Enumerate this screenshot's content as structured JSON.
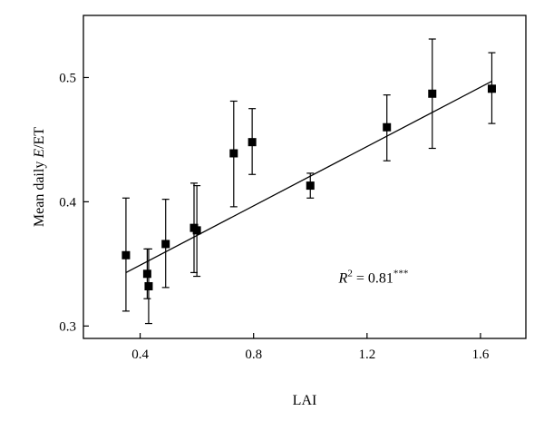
{
  "chart_data": {
    "type": "scatter",
    "xlabel": "LAI",
    "ylabel": {
      "prefix": "Mean daily ",
      "var": "E",
      "suffix": "/ET"
    },
    "xlim": [
      0.2,
      1.76
    ],
    "ylim": [
      0.29,
      0.55
    ],
    "xticks": [
      0.4,
      0.8,
      1.2,
      1.6
    ],
    "xtick_labels": [
      "0.4",
      "0.8",
      "1.2",
      "1.6"
    ],
    "yticks": [
      0.3,
      0.4,
      0.5
    ],
    "ytick_labels": [
      "0.3",
      "0.4",
      "0.5"
    ],
    "points": [
      {
        "x": 0.35,
        "y": 0.357,
        "err_low": 0.312,
        "err_high": 0.403
      },
      {
        "x": 0.425,
        "y": 0.342,
        "err_low": 0.322,
        "err_high": 0.362
      },
      {
        "x": 0.43,
        "y": 0.332,
        "err_low": 0.302,
        "err_high": 0.362
      },
      {
        "x": 0.49,
        "y": 0.366,
        "err_low": 0.331,
        "err_high": 0.402
      },
      {
        "x": 0.59,
        "y": 0.379,
        "err_low": 0.343,
        "err_high": 0.415
      },
      {
        "x": 0.6,
        "y": 0.377,
        "err_low": 0.34,
        "err_high": 0.413
      },
      {
        "x": 0.73,
        "y": 0.439,
        "err_low": 0.396,
        "err_high": 0.481
      },
      {
        "x": 0.795,
        "y": 0.448,
        "err_low": 0.422,
        "err_high": 0.475
      },
      {
        "x": 1.0,
        "y": 0.413,
        "err_low": 0.403,
        "err_high": 0.423
      },
      {
        "x": 1.27,
        "y": 0.46,
        "err_low": 0.433,
        "err_high": 0.486
      },
      {
        "x": 1.43,
        "y": 0.487,
        "err_low": 0.443,
        "err_high": 0.531
      },
      {
        "x": 1.64,
        "y": 0.491,
        "err_low": 0.463,
        "err_high": 0.52
      }
    ],
    "fit_line": {
      "x": [
        0.35,
        1.64
      ],
      "y": [
        0.343,
        0.497
      ]
    },
    "annotation": {
      "var": "R",
      "exponent": "2",
      "text": " = 0.81",
      "significance": "***",
      "x": 1.1,
      "y": 0.335
    },
    "grid": false,
    "legend": "none"
  }
}
